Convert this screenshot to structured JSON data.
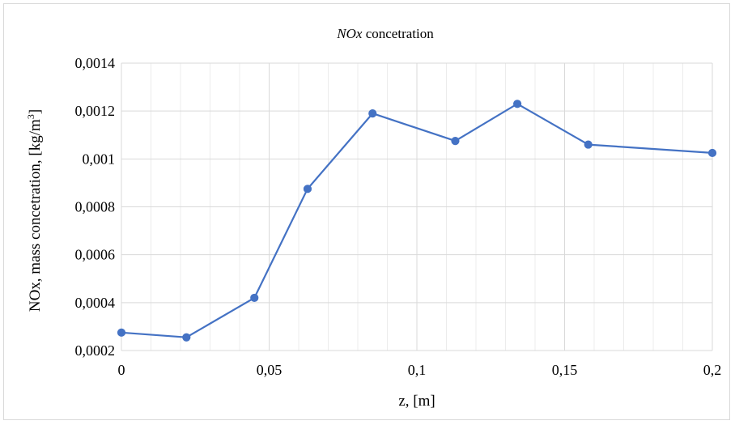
{
  "chart_data": {
    "type": "line",
    "title": {
      "italic_part": "NOx",
      "rest": " concetration"
    },
    "xlabel": "z, [m]",
    "ylabel": {
      "main": "NOx, mass concetration, [kg/m",
      "sup": "3",
      "close": "]"
    },
    "x_ticks": [
      "0",
      "0,05",
      "0,1",
      "0,15",
      "0,2"
    ],
    "y_ticks": [
      "0,0002",
      "0,0004",
      "0,0006",
      "0,0008",
      "0,001",
      "0,0012",
      "0,0014"
    ],
    "xlim": [
      0,
      0.2
    ],
    "ylim": [
      0.0002,
      0.0014
    ],
    "x_minor_step": 0.01,
    "y_major_step": 0.0002,
    "grid": true,
    "legend": false,
    "series": [
      {
        "color": "#4472c4",
        "x": [
          0,
          0.022,
          0.045,
          0.063,
          0.085,
          0.113,
          0.134,
          0.158,
          0.2
        ],
        "y": [
          0.000275,
          0.000255,
          0.00042,
          0.000875,
          0.00119,
          0.001075,
          0.00123,
          0.00106,
          0.001025
        ]
      }
    ]
  }
}
